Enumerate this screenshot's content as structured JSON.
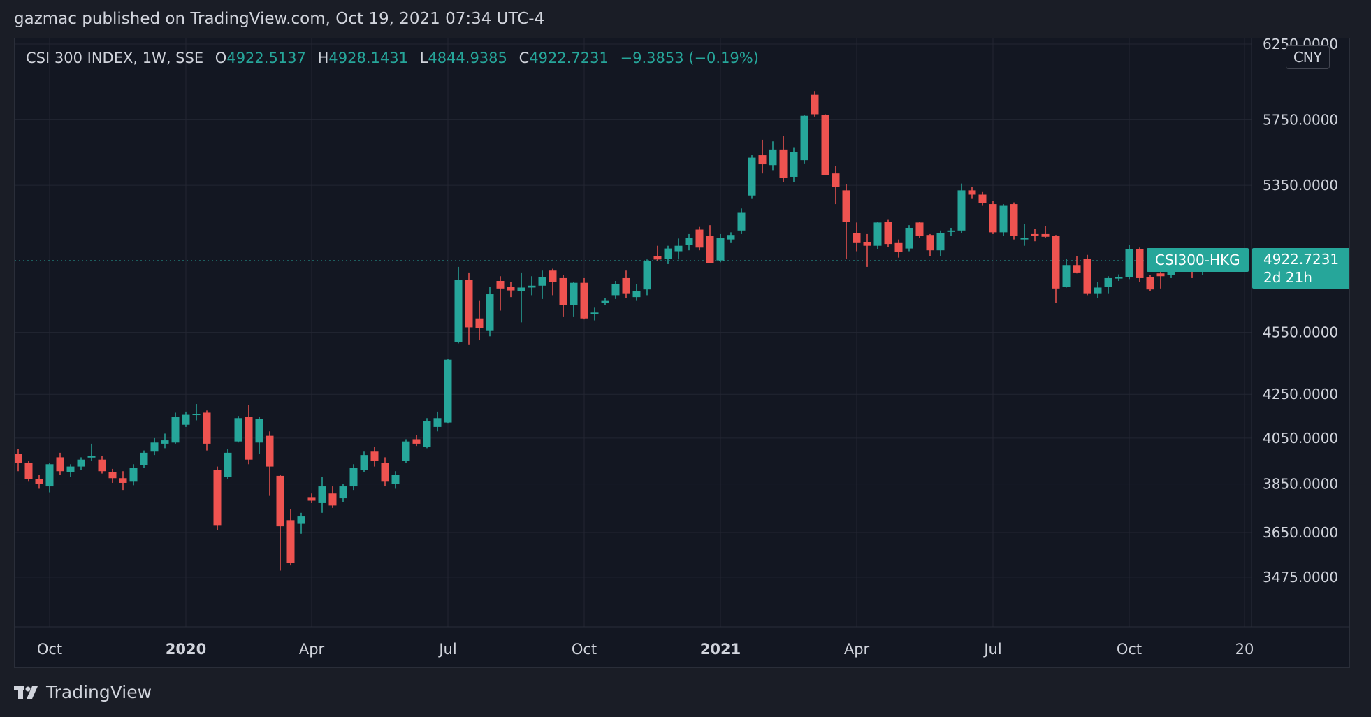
{
  "header": {
    "publisher_text": "gazmac published on TradingView.com, Oct 19, 2021 07:34 UTC-4"
  },
  "legend": {
    "symbol": "CSI 300 INDEX, 1W, SSE",
    "open_label": "O",
    "open": "4922.5137",
    "high_label": "H",
    "high": "4928.1431",
    "low_label": "L",
    "low": "4844.9385",
    "close_label": "C",
    "close": "4922.7231",
    "change": "−9.3853 (−0.19%)"
  },
  "currency": "CNY",
  "last_price": {
    "symbol_tag": "CSI300-HKG",
    "price": "4922.7231",
    "countdown": "2d 21h"
  },
  "brand": {
    "name": "TradingView",
    "logo_icon": "tradingview-logo-icon"
  },
  "colors": {
    "up": "#26a69a",
    "down": "#ef5350",
    "background": "#131722",
    "grid": "#232632",
    "text": "#d1d4dc"
  },
  "chart_data": {
    "type": "candlestick",
    "title": "CSI 300 INDEX, 1W, SSE",
    "y_scale": "log",
    "ylim": [
      3300,
      6250
    ],
    "y_ticks": [
      "6250.0000",
      "5750.0000",
      "5350.0000",
      "4550.0000",
      "4250.0000",
      "4050.0000",
      "3850.0000",
      "3650.0000",
      "3475.0000"
    ],
    "x_ticks": [
      {
        "label": "Oct",
        "index": 3,
        "bold": false
      },
      {
        "label": "2020",
        "index": 16,
        "bold": true
      },
      {
        "label": "Apr",
        "index": 28,
        "bold": false
      },
      {
        "label": "Jul",
        "index": 41,
        "bold": false
      },
      {
        "label": "Oct",
        "index": 54,
        "bold": false
      },
      {
        "label": "2021",
        "index": 67,
        "bold": true
      },
      {
        "label": "Apr",
        "index": 80,
        "bold": false
      },
      {
        "label": "Jul",
        "index": 93,
        "bold": false
      },
      {
        "label": "Oct",
        "index": 106,
        "bold": false
      },
      {
        "label": "20",
        "index": 117,
        "bold": false
      }
    ],
    "last_close": 4922.7231,
    "candles": [
      {
        "o": 3980,
        "h": 4000,
        "l": 3905,
        "c": 3940
      },
      {
        "o": 3940,
        "h": 3950,
        "l": 3860,
        "c": 3870
      },
      {
        "o": 3870,
        "h": 3890,
        "l": 3830,
        "c": 3850
      },
      {
        "o": 3840,
        "h": 3940,
        "l": 3815,
        "c": 3935
      },
      {
        "o": 3965,
        "h": 3985,
        "l": 3890,
        "c": 3905
      },
      {
        "o": 3900,
        "h": 3935,
        "l": 3880,
        "c": 3925
      },
      {
        "o": 3925,
        "h": 3965,
        "l": 3910,
        "c": 3955
      },
      {
        "o": 3965,
        "h": 4025,
        "l": 3950,
        "c": 3970
      },
      {
        "o": 3955,
        "h": 3970,
        "l": 3895,
        "c": 3905
      },
      {
        "o": 3900,
        "h": 3915,
        "l": 3855,
        "c": 3875
      },
      {
        "o": 3875,
        "h": 3905,
        "l": 3825,
        "c": 3855
      },
      {
        "o": 3860,
        "h": 3935,
        "l": 3845,
        "c": 3920
      },
      {
        "o": 3930,
        "h": 3995,
        "l": 3920,
        "c": 3985
      },
      {
        "o": 3990,
        "h": 4050,
        "l": 3975,
        "c": 4030
      },
      {
        "o": 4025,
        "h": 4070,
        "l": 4005,
        "c": 4040
      },
      {
        "o": 4030,
        "h": 4165,
        "l": 4025,
        "c": 4145
      },
      {
        "o": 4110,
        "h": 4170,
        "l": 4100,
        "c": 4155
      },
      {
        "o": 4155,
        "h": 4205,
        "l": 4130,
        "c": 4160
      },
      {
        "o": 4165,
        "h": 4175,
        "l": 3995,
        "c": 4025
      },
      {
        "o": 3910,
        "h": 3925,
        "l": 3660,
        "c": 3680
      },
      {
        "o": 3880,
        "h": 4000,
        "l": 3870,
        "c": 3985
      },
      {
        "o": 4035,
        "h": 4150,
        "l": 4030,
        "c": 4140
      },
      {
        "o": 4145,
        "h": 4200,
        "l": 3935,
        "c": 3955
      },
      {
        "o": 4030,
        "h": 4145,
        "l": 3980,
        "c": 4135
      },
      {
        "o": 4060,
        "h": 4080,
        "l": 3800,
        "c": 3925
      },
      {
        "o": 3885,
        "h": 3890,
        "l": 3500,
        "c": 3675
      },
      {
        "o": 3700,
        "h": 3745,
        "l": 3520,
        "c": 3530
      },
      {
        "o": 3685,
        "h": 3730,
        "l": 3645,
        "c": 3715
      },
      {
        "o": 3795,
        "h": 3810,
        "l": 3770,
        "c": 3780
      },
      {
        "o": 3770,
        "h": 3880,
        "l": 3730,
        "c": 3840
      },
      {
        "o": 3810,
        "h": 3840,
        "l": 3750,
        "c": 3760
      },
      {
        "o": 3790,
        "h": 3850,
        "l": 3775,
        "c": 3840
      },
      {
        "o": 3840,
        "h": 3935,
        "l": 3825,
        "c": 3920
      },
      {
        "o": 3910,
        "h": 3990,
        "l": 3900,
        "c": 3975
      },
      {
        "o": 3990,
        "h": 4010,
        "l": 3925,
        "c": 3950
      },
      {
        "o": 3940,
        "h": 3965,
        "l": 3840,
        "c": 3860
      },
      {
        "o": 3850,
        "h": 3905,
        "l": 3830,
        "c": 3890
      },
      {
        "o": 3950,
        "h": 4045,
        "l": 3940,
        "c": 4035
      },
      {
        "o": 4045,
        "h": 4065,
        "l": 4015,
        "c": 4025
      },
      {
        "o": 4010,
        "h": 4140,
        "l": 4005,
        "c": 4125
      },
      {
        "o": 4100,
        "h": 4170,
        "l": 4080,
        "c": 4140
      },
      {
        "o": 4120,
        "h": 4420,
        "l": 4115,
        "c": 4415
      },
      {
        "o": 4500,
        "h": 4890,
        "l": 4495,
        "c": 4820
      },
      {
        "o": 4820,
        "h": 4860,
        "l": 4490,
        "c": 4575
      },
      {
        "o": 4620,
        "h": 4710,
        "l": 4510,
        "c": 4570
      },
      {
        "o": 4560,
        "h": 4785,
        "l": 4530,
        "c": 4745
      },
      {
        "o": 4815,
        "h": 4840,
        "l": 4660,
        "c": 4775
      },
      {
        "o": 4785,
        "h": 4810,
        "l": 4730,
        "c": 4765
      },
      {
        "o": 4760,
        "h": 4860,
        "l": 4600,
        "c": 4780
      },
      {
        "o": 4780,
        "h": 4840,
        "l": 4740,
        "c": 4790
      },
      {
        "o": 4790,
        "h": 4870,
        "l": 4720,
        "c": 4835
      },
      {
        "o": 4870,
        "h": 4880,
        "l": 4740,
        "c": 4810
      },
      {
        "o": 4830,
        "h": 4845,
        "l": 4630,
        "c": 4690
      },
      {
        "o": 4690,
        "h": 4810,
        "l": 4630,
        "c": 4805
      },
      {
        "o": 4805,
        "h": 4830,
        "l": 4615,
        "c": 4620
      },
      {
        "o": 4650,
        "h": 4675,
        "l": 4610,
        "c": 4650
      },
      {
        "o": 4700,
        "h": 4725,
        "l": 4690,
        "c": 4710
      },
      {
        "o": 4740,
        "h": 4815,
        "l": 4720,
        "c": 4800
      },
      {
        "o": 4830,
        "h": 4870,
        "l": 4725,
        "c": 4750
      },
      {
        "o": 4730,
        "h": 4800,
        "l": 4710,
        "c": 4760
      },
      {
        "o": 4770,
        "h": 4930,
        "l": 4740,
        "c": 4920
      },
      {
        "o": 4950,
        "h": 5005,
        "l": 4920,
        "c": 4930
      },
      {
        "o": 4935,
        "h": 5005,
        "l": 4905,
        "c": 4990
      },
      {
        "o": 4975,
        "h": 5045,
        "l": 4930,
        "c": 5005
      },
      {
        "o": 5010,
        "h": 5070,
        "l": 4980,
        "c": 5050
      },
      {
        "o": 5095,
        "h": 5110,
        "l": 4980,
        "c": 4995
      },
      {
        "o": 5060,
        "h": 5120,
        "l": 4910,
        "c": 4910
      },
      {
        "o": 4925,
        "h": 5070,
        "l": 4915,
        "c": 5050
      },
      {
        "o": 5040,
        "h": 5080,
        "l": 5020,
        "c": 5065
      },
      {
        "o": 5090,
        "h": 5215,
        "l": 5070,
        "c": 5190
      },
      {
        "o": 5290,
        "h": 5530,
        "l": 5270,
        "c": 5515
      },
      {
        "o": 5530,
        "h": 5625,
        "l": 5420,
        "c": 5475
      },
      {
        "o": 5470,
        "h": 5615,
        "l": 5440,
        "c": 5565
      },
      {
        "o": 5565,
        "h": 5650,
        "l": 5370,
        "c": 5395
      },
      {
        "o": 5400,
        "h": 5575,
        "l": 5370,
        "c": 5550
      },
      {
        "o": 5500,
        "h": 5780,
        "l": 5480,
        "c": 5775
      },
      {
        "o": 5910,
        "h": 5935,
        "l": 5770,
        "c": 5785
      },
      {
        "o": 5780,
        "h": 5785,
        "l": 5410,
        "c": 5410
      },
      {
        "o": 5420,
        "h": 5465,
        "l": 5240,
        "c": 5340
      },
      {
        "o": 5320,
        "h": 5355,
        "l": 4935,
        "c": 5140
      },
      {
        "o": 5075,
        "h": 5135,
        "l": 4975,
        "c": 5020
      },
      {
        "o": 5025,
        "h": 5070,
        "l": 4890,
        "c": 5005
      },
      {
        "o": 5005,
        "h": 5140,
        "l": 4985,
        "c": 5135
      },
      {
        "o": 5140,
        "h": 5150,
        "l": 5000,
        "c": 5015
      },
      {
        "o": 5020,
        "h": 5040,
        "l": 4940,
        "c": 4970
      },
      {
        "o": 4990,
        "h": 5120,
        "l": 4975,
        "c": 5105
      },
      {
        "o": 5135,
        "h": 5140,
        "l": 5050,
        "c": 5060
      },
      {
        "o": 5065,
        "h": 5070,
        "l": 4950,
        "c": 4980
      },
      {
        "o": 4980,
        "h": 5090,
        "l": 4950,
        "c": 5075
      },
      {
        "o": 5085,
        "h": 5105,
        "l": 5060,
        "c": 5090
      },
      {
        "o": 5090,
        "h": 5360,
        "l": 5075,
        "c": 5320
      },
      {
        "o": 5320,
        "h": 5340,
        "l": 5270,
        "c": 5295
      },
      {
        "o": 5295,
        "h": 5310,
        "l": 5230,
        "c": 5245
      },
      {
        "o": 5240,
        "h": 5260,
        "l": 5070,
        "c": 5080
      },
      {
        "o": 5080,
        "h": 5240,
        "l": 5060,
        "c": 5230
      },
      {
        "o": 5240,
        "h": 5250,
        "l": 5040,
        "c": 5060
      },
      {
        "o": 5040,
        "h": 5125,
        "l": 5005,
        "c": 5050
      },
      {
        "o": 5070,
        "h": 5100,
        "l": 5030,
        "c": 5060
      },
      {
        "o": 5070,
        "h": 5115,
        "l": 5050,
        "c": 5055
      },
      {
        "o": 5060,
        "h": 5065,
        "l": 4700,
        "c": 4775
      },
      {
        "o": 4785,
        "h": 4935,
        "l": 4780,
        "c": 4900
      },
      {
        "o": 4900,
        "h": 4950,
        "l": 4855,
        "c": 4860
      },
      {
        "o": 4935,
        "h": 4955,
        "l": 4740,
        "c": 4750
      },
      {
        "o": 4750,
        "h": 4810,
        "l": 4725,
        "c": 4780
      },
      {
        "o": 4785,
        "h": 4840,
        "l": 4750,
        "c": 4830
      },
      {
        "o": 4830,
        "h": 4850,
        "l": 4815,
        "c": 4835
      },
      {
        "o": 4835,
        "h": 5010,
        "l": 4825,
        "c": 4985
      },
      {
        "o": 4985,
        "h": 4995,
        "l": 4810,
        "c": 4830
      },
      {
        "o": 4835,
        "h": 4845,
        "l": 4760,
        "c": 4770
      },
      {
        "o": 4855,
        "h": 4870,
        "l": 4775,
        "c": 4840
      },
      {
        "o": 4845,
        "h": 4935,
        "l": 4830,
        "c": 4920
      },
      {
        "o": 4920,
        "h": 4930,
        "l": 4910,
        "c": 4925
      },
      {
        "o": 4935,
        "h": 4965,
        "l": 4830,
        "c": 4920
      },
      {
        "o": 4922.5137,
        "h": 4928.1431,
        "l": 4844.9385,
        "c": 4922.7231
      }
    ]
  }
}
